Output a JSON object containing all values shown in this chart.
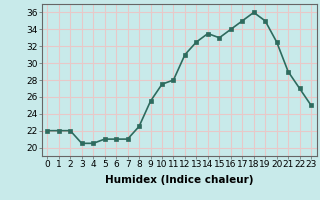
{
  "x": [
    0,
    1,
    2,
    3,
    4,
    5,
    6,
    7,
    8,
    9,
    10,
    11,
    12,
    13,
    14,
    15,
    16,
    17,
    18,
    19,
    20,
    21,
    22,
    23
  ],
  "y": [
    22,
    22,
    22,
    20.5,
    20.5,
    21,
    21,
    21,
    22.5,
    25.5,
    27.5,
    28,
    31,
    32.5,
    33.5,
    33,
    34,
    35,
    36,
    35,
    32.5,
    29,
    27,
    25
  ],
  "line_color": "#2e6b5e",
  "marker_color": "#2e6b5e",
  "bg_color": "#c8eaea",
  "grid_color": "#e8c8c8",
  "xlabel": "Humidex (Indice chaleur)",
  "ylim": [
    19,
    37
  ],
  "xlim": [
    -0.5,
    23.5
  ],
  "yticks": [
    20,
    22,
    24,
    26,
    28,
    30,
    32,
    34,
    36
  ],
  "xticks": [
    0,
    1,
    2,
    3,
    4,
    5,
    6,
    7,
    8,
    9,
    10,
    11,
    12,
    13,
    14,
    15,
    16,
    17,
    18,
    19,
    20,
    21,
    22,
    23
  ],
  "xtick_labels": [
    "0",
    "1",
    "2",
    "3",
    "4",
    "5",
    "6",
    "7",
    "8",
    "9",
    "10",
    "11",
    "12",
    "13",
    "14",
    "15",
    "16",
    "17",
    "18",
    "19",
    "20",
    "21",
    "22",
    "23"
  ],
  "font_size": 6.5,
  "xlabel_fontsize": 7.5,
  "line_width": 1.2,
  "marker_size": 2.5
}
